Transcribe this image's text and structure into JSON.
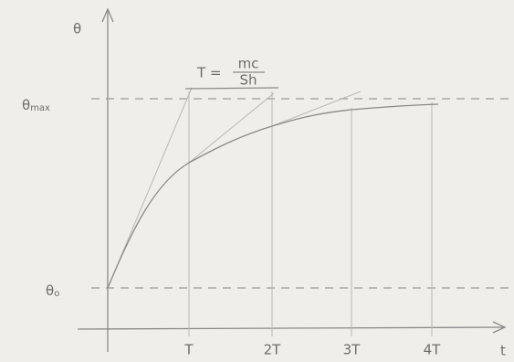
{
  "axes": {
    "y_label": "θ",
    "x_label": "t"
  },
  "levels": {
    "max": {
      "symbol": "θ",
      "subscript": "max"
    },
    "initial": {
      "symbol": "θ",
      "subscript": "o"
    }
  },
  "ticks": [
    "T",
    "2T",
    "3T",
    "4T"
  ],
  "formula": {
    "lhs": "T =",
    "numerator": "mc",
    "denominator": "Sh"
  }
}
